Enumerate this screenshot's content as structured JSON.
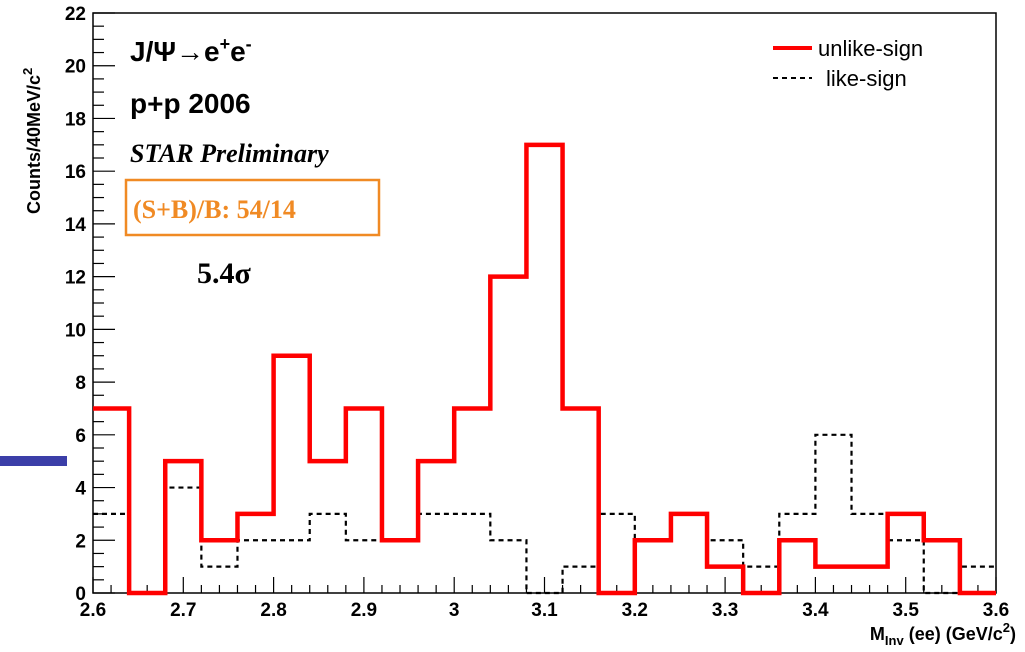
{
  "chart_data": {
    "type": "histogram",
    "xlabel": "M",
    "xlabel_sub": "Inv",
    "xlabel_rest": "(ee) (GeV/c",
    "xlabel_sup": "2",
    "xlabel_close": ")",
    "ylabel": "Counts/40MeV/c",
    "ylabel_sup": "2",
    "xlim": [
      2.6,
      3.6
    ],
    "ylim": [
      0,
      22
    ],
    "bin_edges": [
      2.6,
      2.64,
      2.68,
      2.72,
      2.76,
      2.8,
      2.84,
      2.88,
      2.92,
      2.96,
      3.0,
      3.04,
      3.08,
      3.12,
      3.16,
      3.2,
      3.24,
      3.28,
      3.32,
      3.36,
      3.4,
      3.44,
      3.48,
      3.52,
      3.56,
      3.6
    ],
    "x_ticks": [
      "2.6",
      "2.7",
      "2.8",
      "2.9",
      "3",
      "3.1",
      "3.2",
      "3.3",
      "3.4",
      "3.5",
      "3.6"
    ],
    "y_ticks": [
      "0",
      "2",
      "4",
      "6",
      "8",
      "10",
      "12",
      "14",
      "16",
      "18",
      "20",
      "22"
    ],
    "series": [
      {
        "name": "unlike-sign",
        "color": "#ff0000",
        "style": "solid",
        "values": [
          7,
          0,
          5,
          2,
          3,
          9,
          5,
          7,
          2,
          5,
          7,
          12,
          17,
          7,
          0,
          2,
          3,
          1,
          0,
          2,
          1,
          1,
          3,
          2,
          0
        ]
      },
      {
        "name": "like-sign",
        "color": "#000000",
        "style": "dashed",
        "values": [
          3,
          0,
          4,
          1,
          2,
          2,
          3,
          2,
          2,
          3,
          3,
          2,
          0,
          1,
          3,
          2,
          3,
          2,
          1,
          3,
          6,
          3,
          2,
          0,
          1
        ]
      }
    ],
    "legend_position": "top-right"
  },
  "annotations": {
    "reaction_prefix": "J/Ψ→e",
    "reaction_sup1": "+",
    "reaction_mid": "e",
    "reaction_sup2": "-",
    "dataset": "p+p 2006",
    "preliminary": "STAR Preliminary",
    "ratio_box": "(S+B)/B: 54/14",
    "significance": "5.4σ"
  },
  "colors": {
    "ratio_box": "#f08a24",
    "slide_bar": "#3b3ea8"
  }
}
